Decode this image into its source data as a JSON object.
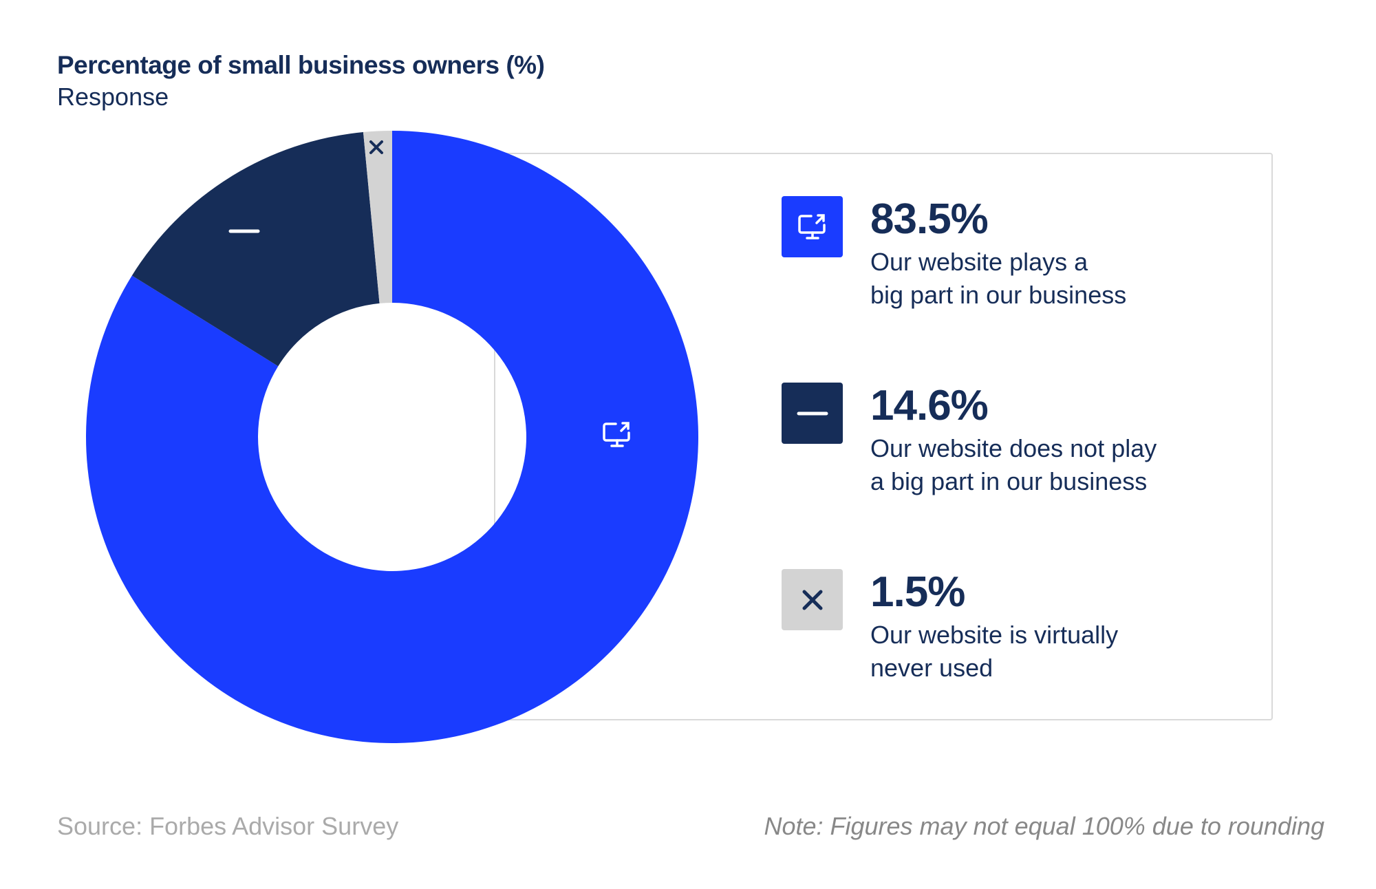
{
  "chart_data": {
    "type": "pie",
    "subtype": "donut",
    "title": "Percentage of small business owners (%)",
    "subtitle": "Response",
    "slices": [
      {
        "value": 83.5,
        "display": "83.5%",
        "label_lines": [
          "Our website plays a",
          "big part in our business"
        ],
        "color": "#1a3cff",
        "icon": "monitor-external-link-icon"
      },
      {
        "value": 14.6,
        "display": "14.6%",
        "label_lines": [
          "Our website does not play",
          "a big part in our business"
        ],
        "color": "#162d58",
        "icon": "minus-icon"
      },
      {
        "value": 1.5,
        "display": "1.5%",
        "label_lines": [
          "Our website is virtually",
          "never used"
        ],
        "color": "#d3d3d3",
        "icon": "x-icon"
      }
    ],
    "legend_placement": "right"
  },
  "footer": {
    "source": "Source: Forbes Advisor Survey",
    "note": "Note: Figures may not equal 100% due to rounding"
  }
}
